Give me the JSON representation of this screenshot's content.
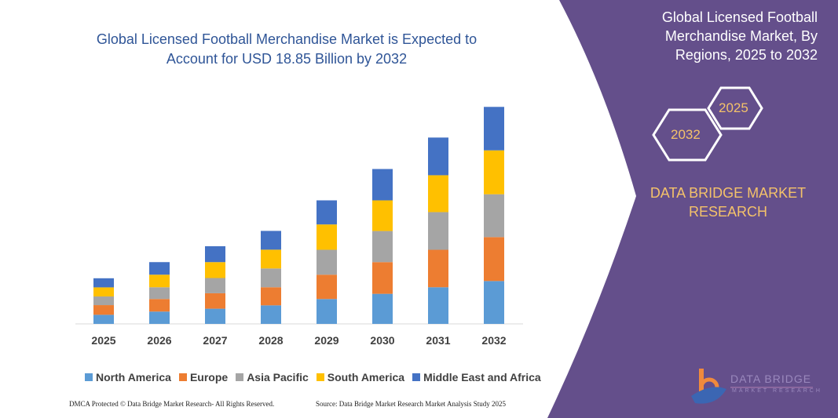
{
  "chart_data": {
    "type": "bar",
    "stacked": true,
    "title": "Global Licensed Football Merchandise Market is Expected to Account for USD 18.85 Billion by 2032",
    "categories": [
      "2025",
      "2026",
      "2027",
      "2028",
      "2029",
      "2030",
      "2031",
      "2032"
    ],
    "series": [
      {
        "name": "North America",
        "color": "#5b9bd5",
        "values": [
          0.79,
          1.07,
          1.32,
          1.61,
          2.16,
          2.61,
          3.18,
          3.72
        ]
      },
      {
        "name": "Europe",
        "color": "#ed7d31",
        "values": [
          0.84,
          1.09,
          1.34,
          1.57,
          2.11,
          2.75,
          3.25,
          3.81
        ]
      },
      {
        "name": "Asia Pacific",
        "color": "#a5a5a5",
        "values": [
          0.75,
          1.02,
          1.32,
          1.63,
          2.16,
          2.7,
          3.27,
          3.72
        ]
      },
      {
        "name": "South America",
        "color": "#ffc000",
        "values": [
          0.79,
          1.09,
          1.38,
          1.63,
          2.2,
          2.66,
          3.2,
          3.81
        ]
      },
      {
        "name": "Middle East and Africa",
        "color": "#4472c4",
        "values": [
          0.79,
          1.09,
          1.38,
          1.63,
          2.09,
          2.72,
          3.27,
          3.77
        ]
      }
    ],
    "ylim": [
      0,
      18.85
    ],
    "grid": false,
    "legend": "bottom"
  },
  "panel": {
    "title": "Global Licensed Football Merchandise Market, By Regions, 2025 to 2032",
    "hex_start": "2025",
    "hex_end": "2032",
    "brand": "DATA BRIDGE MARKET RESEARCH",
    "logo_text": "DATA BRIDGE",
    "logo_sub": "MARKET RESEARCH",
    "color": "#644f8b"
  },
  "footer": {
    "left": "DMCA Protected © Data Bridge Market Research- All Rights Reserved.",
    "right": "Source: Data Bridge Market Research Market Analysis Study 2025"
  }
}
